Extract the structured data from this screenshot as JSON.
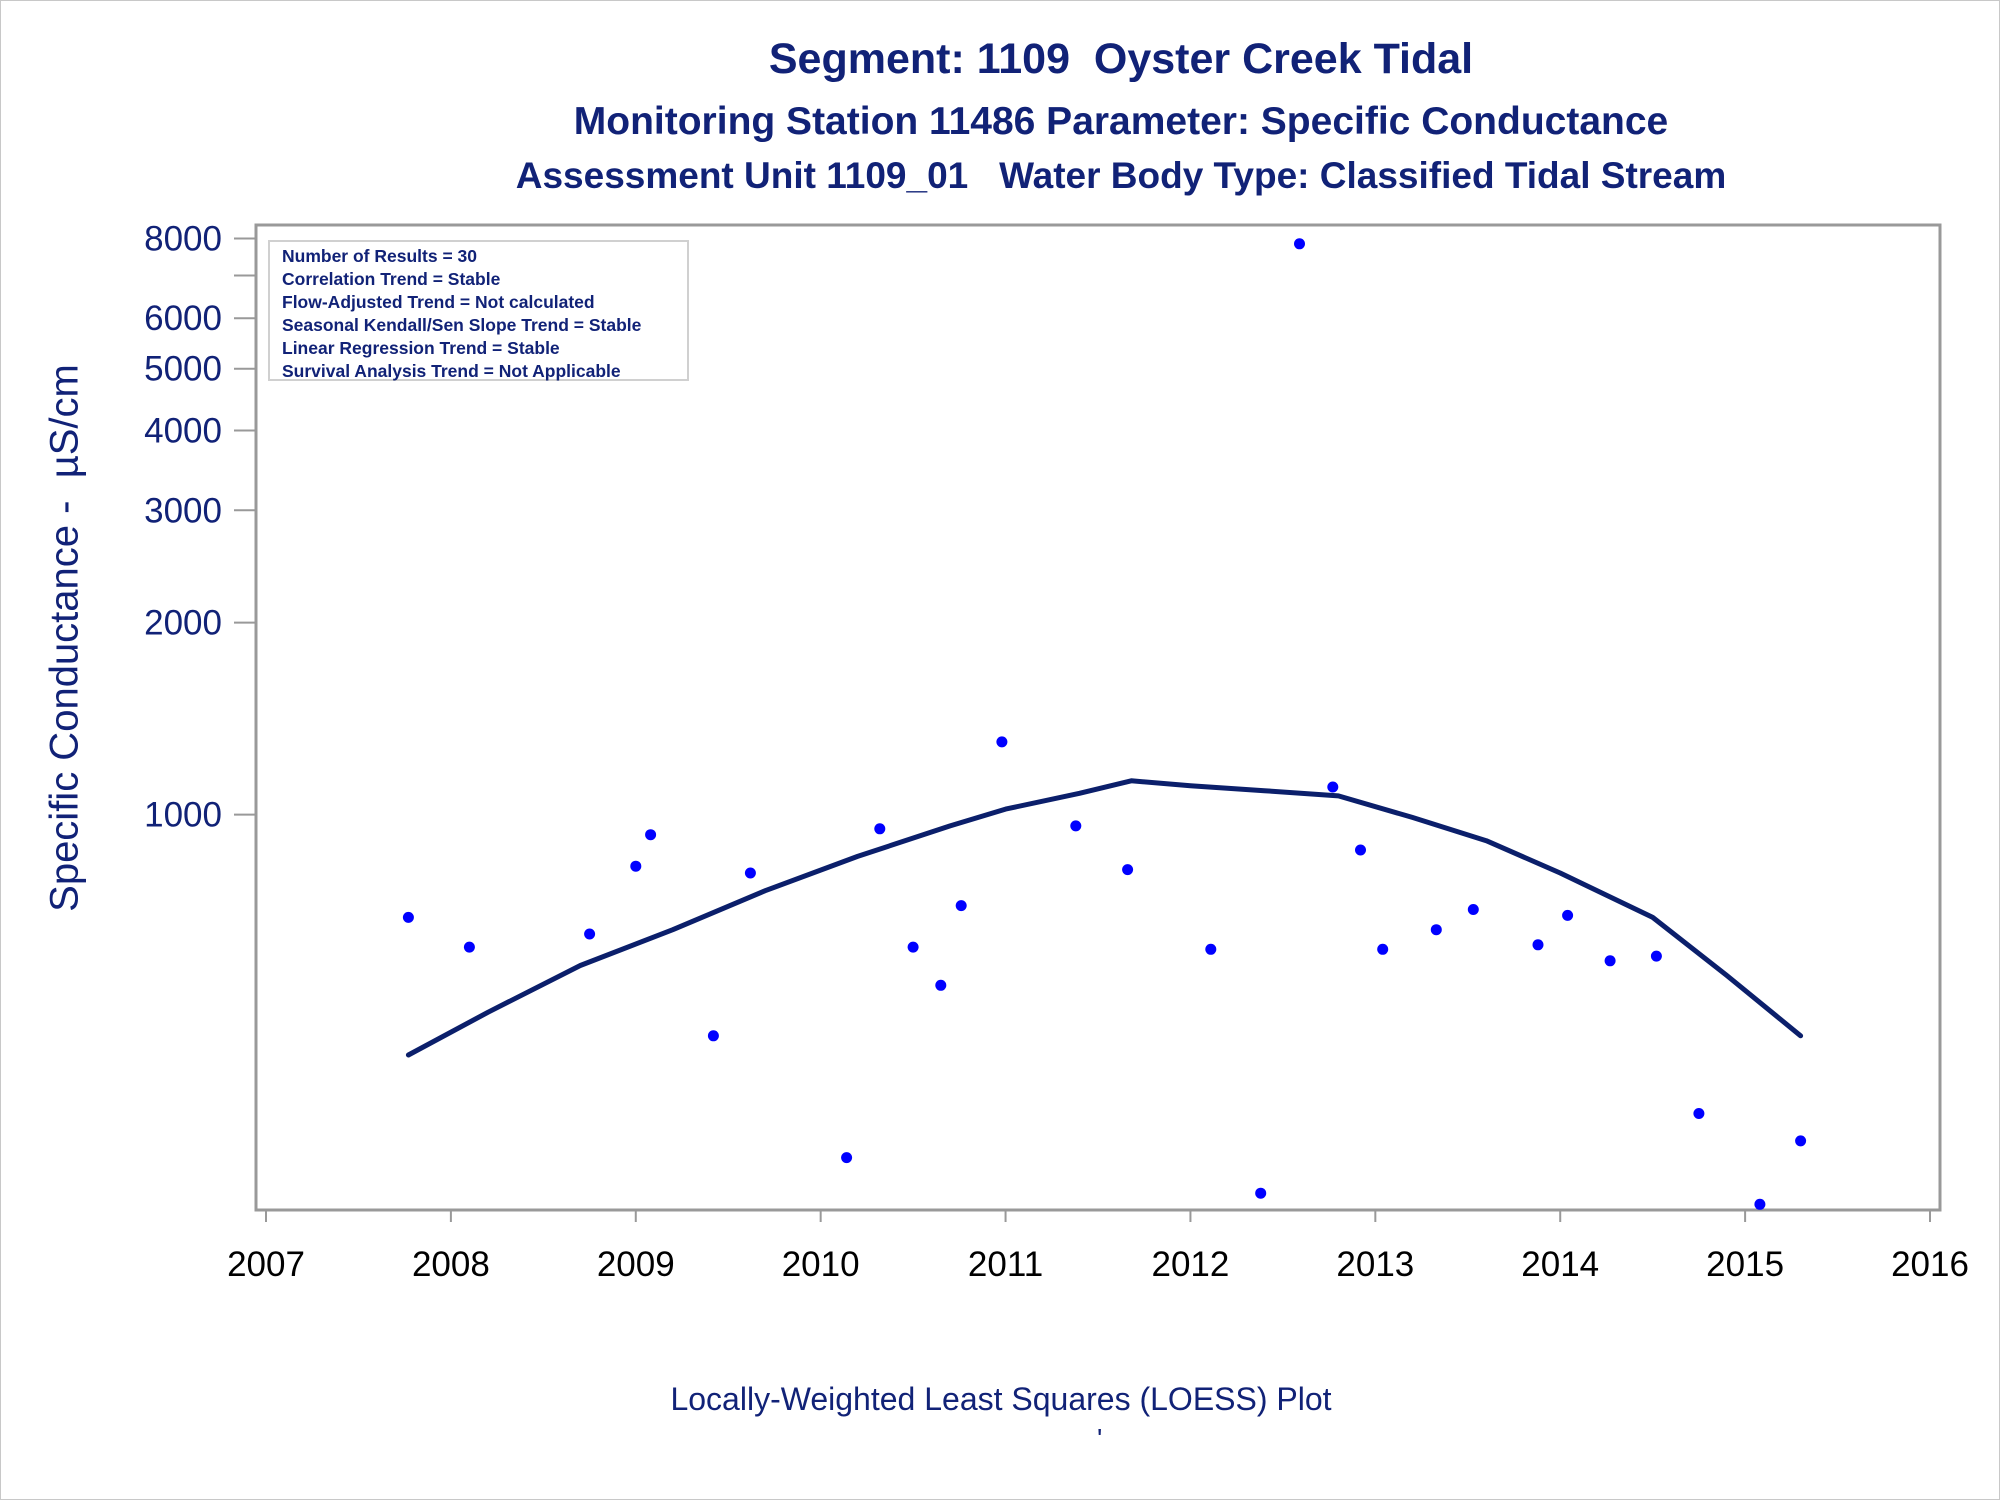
{
  "titles": {
    "main": "Segment: 1109  Oyster Creek Tidal",
    "sub1": "Monitoring Station 11486 Parameter: Specific Conductance",
    "sub2": "Assessment Unit 1109_01   Water Body Type: Classified Tidal Stream"
  },
  "stats": [
    "Number of Results = 30",
    "Correlation Trend = Stable",
    "Flow-Adjusted Trend = Not calculated",
    "Seasonal Kendall/Sen Slope Trend = Stable",
    "Linear Regression Trend = Stable",
    "Survival Analysis Trend = Not Applicable"
  ],
  "footer": {
    "note": "Locally-Weighted Least Squares (LOESS) Plot",
    "mark": "'"
  },
  "colors": {
    "text": "#112277",
    "points": "#0000ff",
    "loess": "#0b1f6b",
    "frame": "#999999"
  },
  "chart_data": {
    "type": "scatter",
    "ylabel": "Specific Conductance -  µS/cm",
    "yscale": "log",
    "xlim": [
      2007,
      2016
    ],
    "ylim": [
      240,
      8400
    ],
    "xticks": [
      "2007",
      "2008",
      "2009",
      "2010",
      "2011",
      "2012",
      "2013",
      "2014",
      "2015",
      "2016"
    ],
    "yticks": [
      "1000",
      "2000",
      "3000",
      "4000",
      "5000",
      "6000",
      "8000"
    ],
    "series": [
      {
        "kind": "points",
        "x": [
          2007.77,
          2008.1,
          2008.75,
          2009.0,
          2009.08,
          2009.42,
          2009.62,
          2010.14,
          2010.32,
          2010.5,
          2010.65,
          2010.76,
          2010.98,
          2011.38,
          2011.66,
          2012.11,
          2012.38,
          2012.59,
          2012.77,
          2012.92,
          2013.04,
          2013.33,
          2013.53,
          2013.88,
          2014.04,
          2014.27,
          2014.52,
          2014.75,
          2015.08,
          2015.3
        ],
        "y": [
          690,
          620,
          650,
          830,
          930,
          450,
          810,
          290,
          950,
          620,
          540,
          720,
          1300,
          960,
          820,
          615,
          255,
          7850,
          1105,
          880,
          615,
          660,
          710,
          625,
          695,
          590,
          600,
          340,
          245,
          308
        ]
      },
      {
        "kind": "loess",
        "x": [
          2007.77,
          2008.2,
          2008.7,
          2009.2,
          2009.7,
          2010.2,
          2010.7,
          2011.0,
          2011.4,
          2011.68,
          2012.0,
          2012.4,
          2012.8,
          2013.2,
          2013.6,
          2014.0,
          2014.5,
          2014.9,
          2015.3
        ],
        "y": [
          420,
          490,
          580,
          660,
          760,
          860,
          960,
          1020,
          1080,
          1130,
          1110,
          1090,
          1070,
          990,
          910,
          810,
          690,
          560,
          450
        ]
      }
    ]
  }
}
